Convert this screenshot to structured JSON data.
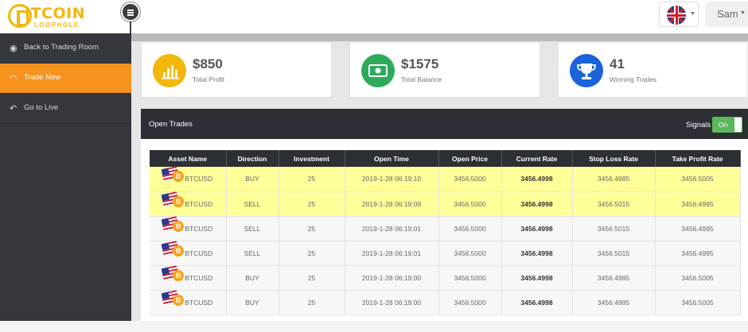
{
  "brand": {
    "title": "ITCOIN",
    "subtitle": "LOOPHOLE",
    "coin_letter": "B"
  },
  "header": {
    "language": "English",
    "user_name": "Sam"
  },
  "sidebar": {
    "items": [
      {
        "label": "Back to Trading Room",
        "icon": "dashboard-icon",
        "active": false
      },
      {
        "label": "Trade Now",
        "icon": "wifi-icon",
        "active": true
      },
      {
        "label": "Go to Live",
        "icon": "back-arrow-icon",
        "active": false
      }
    ]
  },
  "stats": [
    {
      "value": "$850",
      "label": "Total Profit",
      "icon": "bar-chart-icon",
      "color": "#f3b70c"
    },
    {
      "value": "$1575",
      "label": "Total Balance",
      "icon": "banknote-icon",
      "color": "#2eaa5a"
    },
    {
      "value": "41",
      "label": "Winning Trades",
      "icon": "trophy-icon",
      "color": "#1a63d8"
    }
  ],
  "open_trades": {
    "title": "Open Trades",
    "signals_label": "Signals",
    "signals_state": "On",
    "columns": [
      "Asset Name",
      "Direction",
      "Investment",
      "Open Time",
      "Open Price",
      "Current Rate",
      "Stop Loss Rate",
      "Take Profit Rate"
    ],
    "rows": [
      {
        "asset": "BTCUSD",
        "direction": "BUY",
        "investment": "25",
        "open_time": "2019-1-28 06:19:10",
        "open_price": "3456.5000",
        "current_rate": "3456.4998",
        "stop_loss": "3456.4985",
        "take_profit": "3456.5005",
        "highlight": true
      },
      {
        "asset": "BTCUSD",
        "direction": "SELL",
        "investment": "25",
        "open_time": "2019-1-28 06:19:09",
        "open_price": "3456.5000",
        "current_rate": "3456.4998",
        "stop_loss": "3456.5015",
        "take_profit": "3456.4995",
        "highlight": true
      },
      {
        "asset": "BTCUSD",
        "direction": "SELL",
        "investment": "25",
        "open_time": "2019-1-28 06:19:01",
        "open_price": "3456.5000",
        "current_rate": "3456.4998",
        "stop_loss": "3456.5015",
        "take_profit": "3456.4995",
        "highlight": false
      },
      {
        "asset": "BTCUSD",
        "direction": "SELL",
        "investment": "25",
        "open_time": "2019-1-28 06:19:01",
        "open_price": "3456.5000",
        "current_rate": "3456.4998",
        "stop_loss": "3456.5015",
        "take_profit": "3456.4995",
        "highlight": false
      },
      {
        "asset": "BTCUSD",
        "direction": "BUY",
        "investment": "25",
        "open_time": "2019-1-28 06:19:00",
        "open_price": "3456.5000",
        "current_rate": "3456.4998",
        "stop_loss": "3456.4985",
        "take_profit": "3456.5005",
        "highlight": false
      },
      {
        "asset": "BTCUSD",
        "direction": "BUY",
        "investment": "25",
        "open_time": "2019-1-28 06:19:00",
        "open_price": "3456.5000",
        "current_rate": "3456.4998",
        "stop_loss": "3456.4985",
        "take_profit": "3456.5005",
        "highlight": false
      }
    ]
  }
}
